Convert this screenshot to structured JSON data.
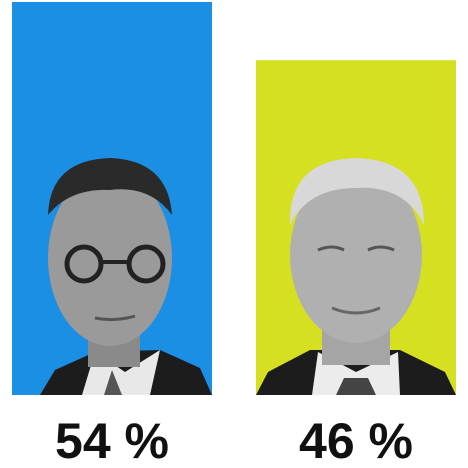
{
  "chart_data": {
    "type": "bar",
    "values": [
      54,
      46
    ],
    "value_labels": [
      "54 %",
      "46 %"
    ],
    "colors": [
      "#1a8fe3",
      "#d5e021"
    ]
  }
}
